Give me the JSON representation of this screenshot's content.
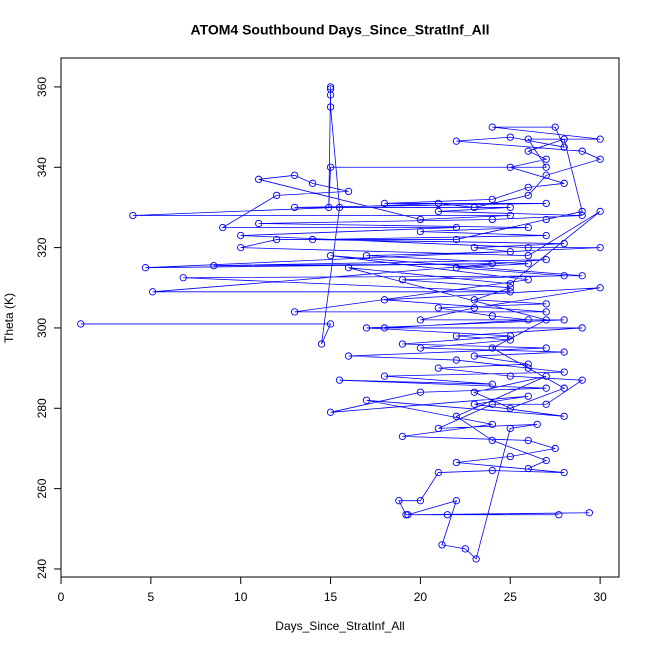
{
  "chart_data": {
    "type": "line",
    "marker": "circle",
    "title": "ATOM4 Southbound Days_Since_StratInf_All",
    "x_label": "Days_Since_StratInf_All",
    "y_label": "Theta (K)",
    "color": "#0000ff",
    "grid": false,
    "xlim": [
      0,
      31.05
    ],
    "ylim": [
      238,
      367.2
    ],
    "xticks": [
      0,
      5,
      10,
      15,
      20,
      25,
      30
    ],
    "yticks": [
      240,
      260,
      280,
      300,
      320,
      340,
      360
    ],
    "x": [
      1.1,
      15.0,
      14.5,
      15.5,
      15,
      15,
      15,
      15,
      14.9,
      15,
      27,
      26,
      30,
      24,
      27.5,
      28,
      25,
      22,
      29,
      30,
      27,
      26,
      23,
      21,
      4,
      25,
      20,
      11,
      13,
      14,
      16,
      12,
      9,
      22,
      10,
      26,
      30,
      4.7,
      24,
      8.5,
      27,
      5.1,
      25,
      6.8,
      29,
      15,
      26,
      13,
      27,
      18,
      30,
      23,
      20,
      28,
      17,
      25,
      19,
      27,
      16,
      22,
      28,
      18,
      24,
      15.5,
      27,
      20,
      15,
      26,
      23,
      28,
      17,
      24,
      19,
      26,
      27.5,
      25,
      22,
      28,
      24,
      21,
      20,
      18.8,
      19.2,
      27.7,
      21.5,
      29.4,
      19.3,
      22,
      21.2,
      22.5,
      23.1,
      25,
      26.5,
      21,
      24,
      27,
      29,
      25,
      21,
      26,
      23,
      28,
      20,
      25,
      22,
      29,
      18,
      26,
      24,
      21,
      27,
      23,
      25,
      19,
      28,
      22,
      26,
      17,
      25,
      23,
      28,
      14,
      27,
      20,
      26,
      11,
      24,
      29,
      21,
      25,
      13,
      27,
      18,
      24,
      26,
      28,
      25,
      27,
      26,
      28,
      29,
      27,
      22,
      12,
      10,
      26,
      30,
      25,
      16,
      27,
      24,
      26,
      28,
      25,
      23,
      27,
      22,
      24,
      27,
      26
    ],
    "values": [
      301,
      301,
      296,
      330,
      355,
      358,
      359.5,
      360,
      330,
      340,
      340,
      347,
      347,
      350,
      350,
      345,
      347.5,
      346.5,
      344,
      342,
      338,
      333,
      330,
      331,
      328,
      328,
      327,
      337,
      338,
      336,
      334,
      333,
      325,
      325,
      323,
      320,
      320,
      315,
      316,
      315.5,
      317,
      309,
      309,
      312.5,
      313,
      318,
      312,
      304,
      304,
      307,
      310,
      305,
      302,
      302,
      300,
      298,
      296,
      295,
      293,
      292,
      289,
      288,
      286,
      287,
      285,
      284,
      279,
      283,
      281,
      278,
      282,
      276,
      273,
      272,
      270,
      268,
      266.5,
      264,
      264.5,
      264,
      257,
      257,
      253.5,
      253.5,
      253.5,
      254,
      253.5,
      257,
      246,
      245,
      242.5,
      275,
      276,
      275,
      281,
      281,
      287,
      288,
      290,
      291,
      293,
      294,
      295,
      297,
      298,
      300,
      300,
      302,
      303,
      305,
      306,
      307,
      310,
      312,
      313,
      315,
      316,
      318,
      319,
      320,
      321,
      322,
      323,
      324,
      325,
      326,
      327,
      328,
      329,
      330,
      330,
      331,
      331,
      332,
      335,
      336,
      340,
      342,
      344,
      347,
      329,
      327,
      322,
      322,
      320,
      318,
      329,
      311,
      315,
      302,
      295,
      290,
      285,
      280,
      284,
      288,
      278,
      272,
      267,
      265
    ]
  }
}
